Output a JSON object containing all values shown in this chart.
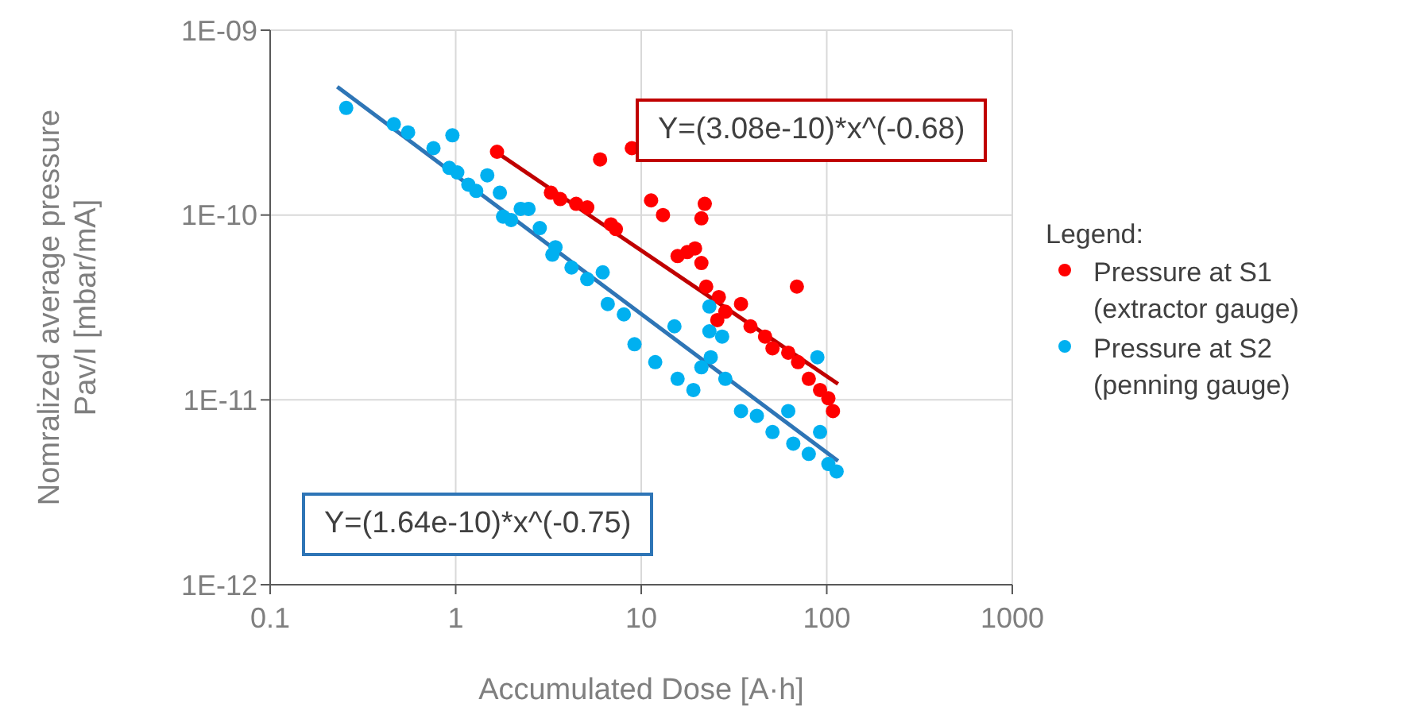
{
  "chart_data": {
    "type": "scatter",
    "xlabel": "Accumulated Dose [A·h]",
    "ylabel": "Nomralized average pressure\nPav/I [mbar/mA]",
    "legend_title": "Legend:",
    "legend": "right",
    "log": "xy",
    "grid": true,
    "marker": "circle",
    "xlim": [
      0.1,
      1000
    ],
    "xticks": [
      0.1,
      1,
      10,
      100,
      1000
    ],
    "ylim": [
      1e-12,
      1e-09
    ],
    "yticks": [
      {
        "value": 1e-12,
        "label": "1E-12"
      },
      {
        "value": 1e-11,
        "label": "1E-11"
      },
      {
        "value": 1e-10,
        "label": "1E-10"
      },
      {
        "value": 1e-09,
        "label": "1E-09"
      }
    ],
    "annotations": [
      "Y=(3.08e-10)*x^(-0.68)",
      "Y=(1.64e-10)*x^(-0.75)"
    ],
    "series": [
      {
        "name": "Pressure at S1 (extractor gauge)",
        "color": "#ff0000",
        "x": [
          1.67,
          3.26,
          3.66,
          4.46,
          5.12,
          6.87,
          7.3,
          6.0,
          8.9,
          11.3,
          13.1,
          21.1,
          22.0,
          15.7,
          17.7,
          19.5,
          21.1,
          22.4,
          26.2,
          28.4,
          34.5,
          25.7,
          38.8,
          46.5,
          51,
          62,
          69,
          70,
          80,
          92,
          102,
          108
        ],
        "values": [
          2.2e-10,
          1.32e-10,
          1.22e-10,
          1.15e-10,
          1.1e-10,
          8.9e-11,
          8.4e-11,
          2e-10,
          2.3e-10,
          1.2e-10,
          1e-10,
          9.6e-11,
          1.15e-10,
          6e-11,
          6.3e-11,
          6.6e-11,
          5.5e-11,
          4.1e-11,
          3.6e-11,
          3e-11,
          3.3e-11,
          2.7e-11,
          2.5e-11,
          2.2e-11,
          1.9e-11,
          1.8e-11,
          4.1e-11,
          1.6e-11,
          1.3e-11,
          1.13e-11,
          1.02e-11,
          8.7e-12
        ]
      },
      {
        "name": "Pressure at S2 (penning gauge)",
        "color": "#00b0f0",
        "x": [
          0.257,
          0.464,
          0.554,
          0.759,
          0.96,
          0.924,
          1.02,
          1.17,
          1.29,
          1.48,
          1.73,
          1.8,
          1.99,
          2.24,
          2.84,
          3.32,
          2.47,
          3.45,
          4.21,
          5.12,
          6.2,
          6.6,
          8.06,
          9.2,
          11.9,
          15.1,
          15.7,
          19.1,
          21.1,
          23.3,
          23.3,
          23.7,
          27.3,
          28.4,
          34.5,
          42,
          51,
          62,
          66,
          80,
          92,
          89,
          102,
          113
        ],
        "values": [
          3.8e-10,
          3.1e-10,
          2.8e-10,
          2.3e-10,
          2.7e-10,
          1.8e-10,
          1.7e-10,
          1.46e-10,
          1.35e-10,
          1.64e-10,
          1.32e-10,
          9.8e-11,
          9.4e-11,
          1.08e-10,
          8.5e-11,
          6.1e-11,
          1.08e-10,
          6.7e-11,
          5.2e-11,
          4.5e-11,
          4.9e-11,
          3.3e-11,
          2.9e-11,
          2e-11,
          1.6e-11,
          2.5e-11,
          1.3e-11,
          1.13e-11,
          1.5e-11,
          3.2e-11,
          2.35e-11,
          1.7e-11,
          2.2e-11,
          1.3e-11,
          8.7e-12,
          8.2e-12,
          6.7e-12,
          8.7e-12,
          5.8e-12,
          5.1e-12,
          6.7e-12,
          1.7e-11,
          4.5e-12,
          4.1e-12
        ]
      },
      {
        "type": "line",
        "color": "#c00000",
        "marker": "none",
        "x": [
          1.6,
          115
        ],
        "values": [
          2.24e-10,
          1.22e-11
        ]
      },
      {
        "type": "line",
        "color": "#2e75b6",
        "marker": "none",
        "x": [
          0.23,
          115
        ],
        "values": [
          4.94e-10,
          4.67e-12
        ]
      }
    ]
  }
}
